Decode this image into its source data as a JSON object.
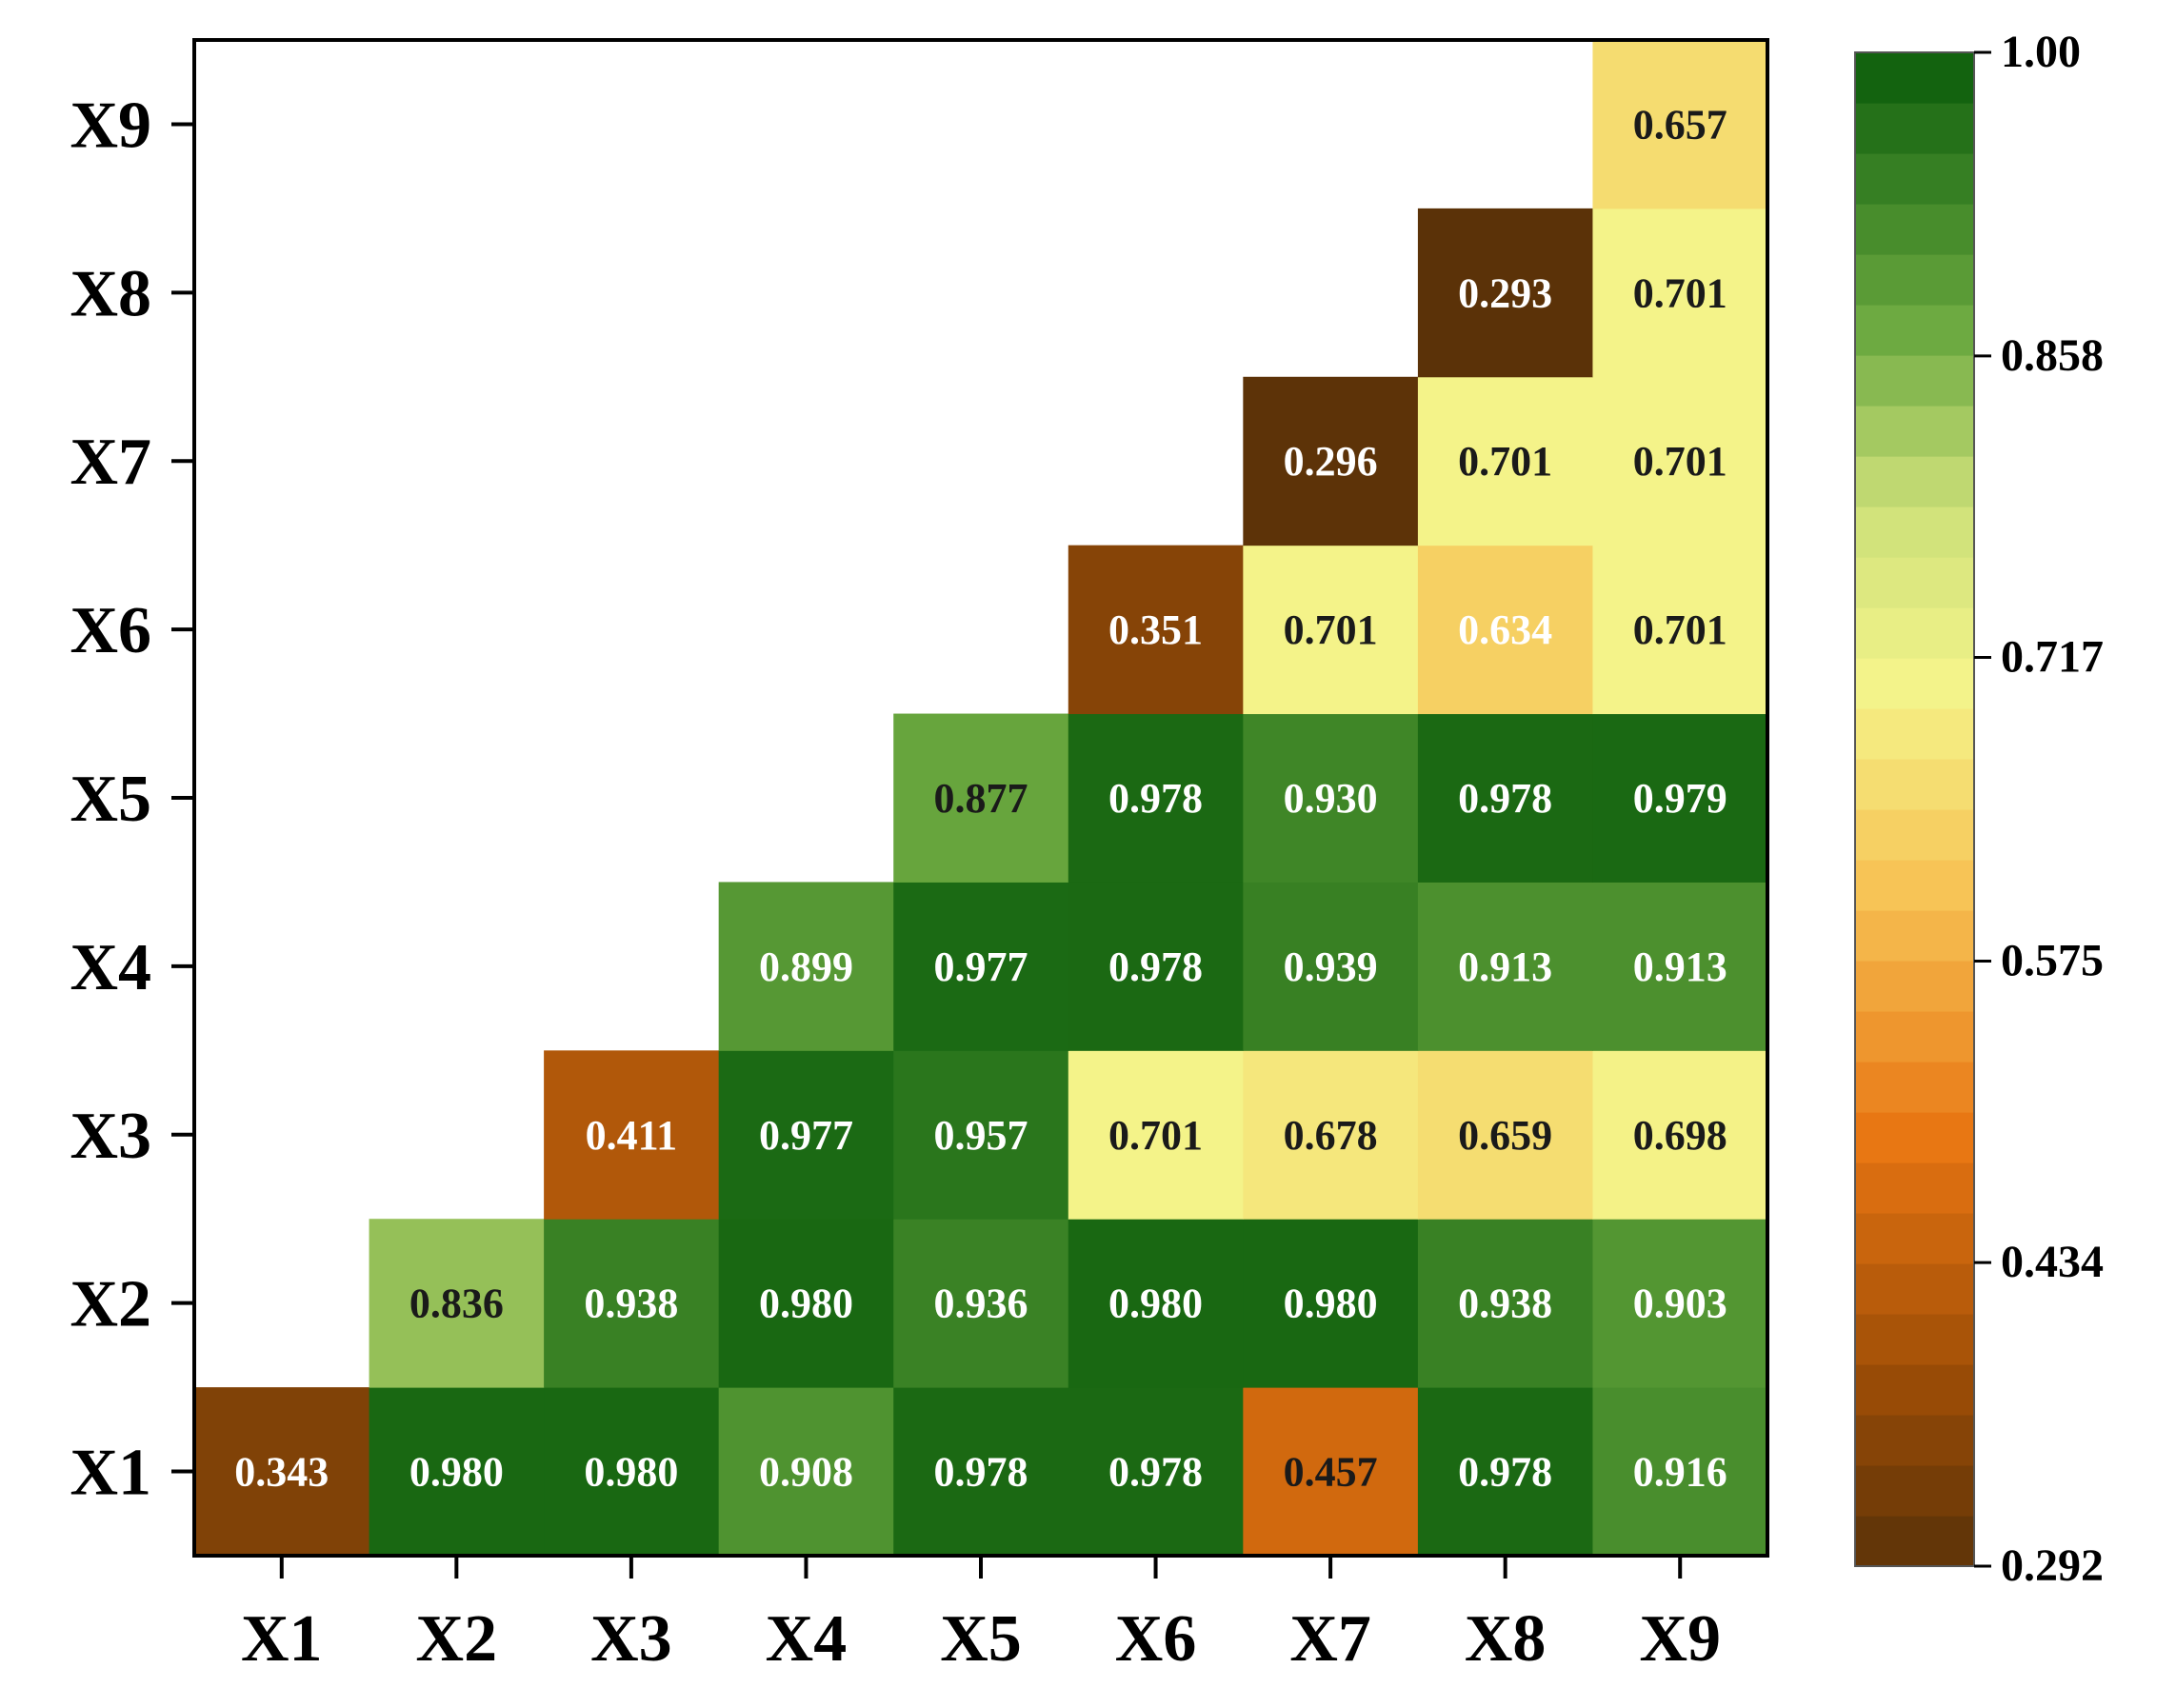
{
  "chart_data": {
    "type": "heatmap",
    "title": "",
    "xlabel": "",
    "ylabel": "",
    "x_categories": [
      "X1",
      "X2",
      "X3",
      "X4",
      "X5",
      "X6",
      "X7",
      "X8",
      "X9"
    ],
    "y_categories": [
      "X1",
      "X2",
      "X3",
      "X4",
      "X5",
      "X6",
      "X7",
      "X8",
      "X9"
    ],
    "layout": "upper-triangular",
    "cells": [
      {
        "x": "X1",
        "y": "X1",
        "value": 0.343,
        "label": "0.343"
      },
      {
        "x": "X2",
        "y": "X1",
        "value": 0.98,
        "label": "0.980"
      },
      {
        "x": "X3",
        "y": "X1",
        "value": 0.98,
        "label": "0.980"
      },
      {
        "x": "X4",
        "y": "X1",
        "value": 0.908,
        "label": "0.908"
      },
      {
        "x": "X5",
        "y": "X1",
        "value": 0.978,
        "label": "0.978"
      },
      {
        "x": "X6",
        "y": "X1",
        "value": 0.978,
        "label": "0.978"
      },
      {
        "x": "X7",
        "y": "X1",
        "value": 0.457,
        "label": "0.457"
      },
      {
        "x": "X8",
        "y": "X1",
        "value": 0.978,
        "label": "0.978"
      },
      {
        "x": "X9",
        "y": "X1",
        "value": 0.916,
        "label": "0.916"
      },
      {
        "x": "X2",
        "y": "X2",
        "value": 0.836,
        "label": "0.836"
      },
      {
        "x": "X3",
        "y": "X2",
        "value": 0.938,
        "label": "0.938"
      },
      {
        "x": "X4",
        "y": "X2",
        "value": 0.98,
        "label": "0.980"
      },
      {
        "x": "X5",
        "y": "X2",
        "value": 0.936,
        "label": "0.936"
      },
      {
        "x": "X6",
        "y": "X2",
        "value": 0.98,
        "label": "0.980"
      },
      {
        "x": "X7",
        "y": "X2",
        "value": 0.98,
        "label": "0.980"
      },
      {
        "x": "X8",
        "y": "X2",
        "value": 0.938,
        "label": "0.938"
      },
      {
        "x": "X9",
        "y": "X2",
        "value": 0.903,
        "label": "0.903"
      },
      {
        "x": "X3",
        "y": "X3",
        "value": 0.411,
        "label": "0.411"
      },
      {
        "x": "X4",
        "y": "X3",
        "value": 0.977,
        "label": "0.977"
      },
      {
        "x": "X5",
        "y": "X3",
        "value": 0.957,
        "label": "0.957"
      },
      {
        "x": "X6",
        "y": "X3",
        "value": 0.701,
        "label": "0.701"
      },
      {
        "x": "X7",
        "y": "X3",
        "value": 0.678,
        "label": "0.678"
      },
      {
        "x": "X8",
        "y": "X3",
        "value": 0.659,
        "label": "0.659"
      },
      {
        "x": "X9",
        "y": "X3",
        "value": 0.698,
        "label": "0.698"
      },
      {
        "x": "X4",
        "y": "X4",
        "value": 0.899,
        "label": "0.899"
      },
      {
        "x": "X5",
        "y": "X4",
        "value": 0.977,
        "label": "0.977"
      },
      {
        "x": "X6",
        "y": "X4",
        "value": 0.978,
        "label": "0.978"
      },
      {
        "x": "X7",
        "y": "X4",
        "value": 0.939,
        "label": "0.939"
      },
      {
        "x": "X8",
        "y": "X4",
        "value": 0.913,
        "label": "0.913"
      },
      {
        "x": "X9",
        "y": "X4",
        "value": 0.913,
        "label": "0.913"
      },
      {
        "x": "X5",
        "y": "X5",
        "value": 0.877,
        "label": "0.877"
      },
      {
        "x": "X6",
        "y": "X5",
        "value": 0.978,
        "label": "0.978"
      },
      {
        "x": "X7",
        "y": "X5",
        "value": 0.93,
        "label": "0.930"
      },
      {
        "x": "X8",
        "y": "X5",
        "value": 0.978,
        "label": "0.978"
      },
      {
        "x": "X9",
        "y": "X5",
        "value": 0.979,
        "label": "0.979"
      },
      {
        "x": "X6",
        "y": "X6",
        "value": 0.351,
        "label": "0.351"
      },
      {
        "x": "X7",
        "y": "X6",
        "value": 0.701,
        "label": "0.701"
      },
      {
        "x": "X8",
        "y": "X6",
        "value": 0.634,
        "label": "0.634"
      },
      {
        "x": "X9",
        "y": "X6",
        "value": 0.701,
        "label": "0.701"
      },
      {
        "x": "X7",
        "y": "X7",
        "value": 0.296,
        "label": "0.296"
      },
      {
        "x": "X8",
        "y": "X7",
        "value": 0.701,
        "label": "0.701"
      },
      {
        "x": "X9",
        "y": "X7",
        "value": 0.701,
        "label": "0.701"
      },
      {
        "x": "X8",
        "y": "X8",
        "value": 0.293,
        "label": "0.293"
      },
      {
        "x": "X9",
        "y": "X8",
        "value": 0.701,
        "label": "0.701"
      },
      {
        "x": "X9",
        "y": "X9",
        "value": 0.657,
        "label": "0.657"
      }
    ],
    "colorbar": {
      "min": 0.292,
      "max": 1.0,
      "ticks": [
        1.0,
        0.858,
        0.717,
        0.575,
        0.434,
        0.292
      ],
      "tick_labels": [
        "1.00",
        "0.858",
        "0.717",
        "0.575",
        "0.434",
        "0.292"
      ],
      "placement": "right",
      "levels": 30,
      "colors": [
        {
          "pos": 0.0,
          "color": "#5a3208"
        },
        {
          "pos": 0.12,
          "color": "#9a4c06"
        },
        {
          "pos": 0.28,
          "color": "#e87512"
        },
        {
          "pos": 0.45,
          "color": "#f7c456"
        },
        {
          "pos": 0.58,
          "color": "#f4f48a"
        },
        {
          "pos": 0.7,
          "color": "#cde079"
        },
        {
          "pos": 0.82,
          "color": "#6aa83f"
        },
        {
          "pos": 1.0,
          "color": "#0a5c0a"
        }
      ]
    },
    "grid": false,
    "label_colors": {
      "light": "#ffffff",
      "dark": "#1a1a1a"
    }
  }
}
